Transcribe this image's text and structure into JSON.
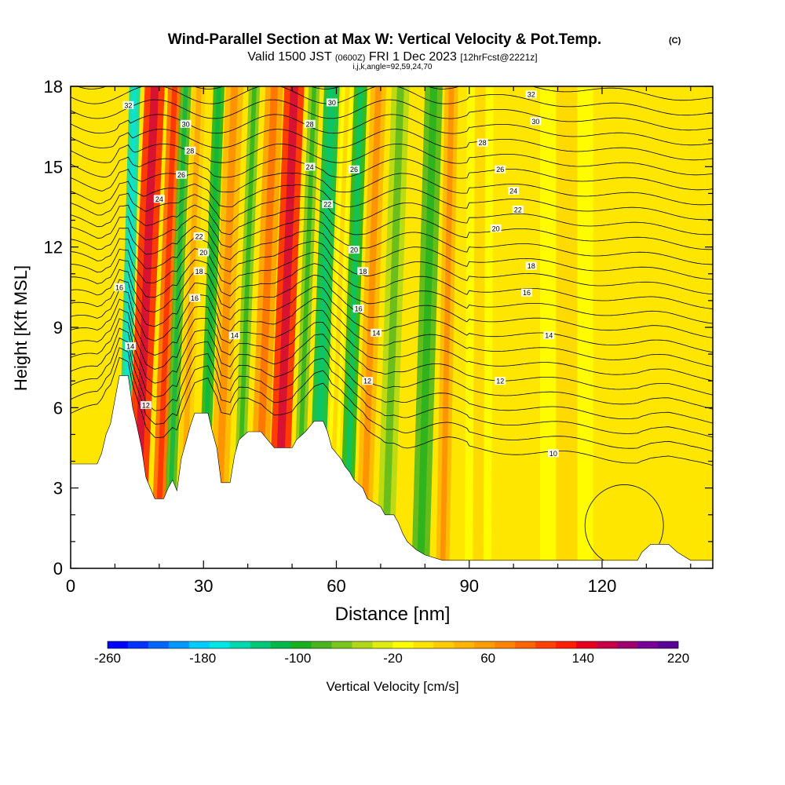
{
  "chart_data": {
    "type": "heatmap",
    "title": "Wind-Parallel Section at Max W: Vertical Velocity & Pot.Temp.",
    "title_mark": "(C)",
    "subtitle": {
      "valid_prefix": "Valid 1500 JST",
      "utc": "(0600Z)",
      "date": "FRI 1 Dec 2023",
      "forecast": "[12hrFcst@2221z]"
    },
    "index_line": "i,j,k,angle=92,59,24,70",
    "xlabel": "Distance [nm]",
    "ylabel": "Height [Kft MSL]",
    "xlim": [
      0,
      145
    ],
    "ylim": [
      0,
      18
    ],
    "x_ticks": [
      "0",
      "30",
      "60",
      "90",
      "120"
    ],
    "x_tick_values": [
      0,
      30,
      60,
      90,
      120
    ],
    "y_ticks": [
      "0",
      "3",
      "6",
      "9",
      "12",
      "15",
      "18"
    ],
    "y_tick_values": [
      0,
      3,
      6,
      9,
      12,
      15,
      18
    ],
    "colorbar": {
      "label": "Vertical Velocity [cm/s]",
      "range": [
        -260,
        220
      ],
      "step": 20,
      "tick_labels": [
        "-260",
        "-180",
        "-100",
        "-20",
        "60",
        "140",
        "220"
      ],
      "tick_values": [
        -260,
        -180,
        -100,
        -20,
        60,
        140,
        220
      ],
      "colors": [
        "#0000ff",
        "#0033ff",
        "#0066ff",
        "#0099ff",
        "#00ccff",
        "#00e5e5",
        "#00d9b0",
        "#00c878",
        "#00b84a",
        "#19b01e",
        "#4ab420",
        "#7cc41e",
        "#b0d816",
        "#e0ec10",
        "#ffff00",
        "#ffe400",
        "#ffcc00",
        "#ffb400",
        "#ff9c00",
        "#ff8200",
        "#ff6400",
        "#ff4000",
        "#ff1e00",
        "#e6001e",
        "#c80046",
        "#a0006e",
        "#780096",
        "#5a0096"
      ]
    },
    "theta_contours": {
      "unit_note": "potential temperature isentropes",
      "labels": [
        {
          "text": "32",
          "x": 13,
          "y": 17.3
        },
        {
          "text": "30",
          "x": 26,
          "y": 16.6
        },
        {
          "text": "28",
          "x": 27,
          "y": 15.6
        },
        {
          "text": "26",
          "x": 25,
          "y": 14.7
        },
        {
          "text": "24",
          "x": 20,
          "y": 13.8
        },
        {
          "text": "22",
          "x": 29,
          "y": 12.4
        },
        {
          "text": "20",
          "x": 30,
          "y": 11.8
        },
        {
          "text": "18",
          "x": 29,
          "y": 11.1
        },
        {
          "text": "16",
          "x": 11,
          "y": 10.5
        },
        {
          "text": "16",
          "x": 28,
          "y": 10.1
        },
        {
          "text": "14",
          "x": 37,
          "y": 8.7
        },
        {
          "text": "14",
          "x": 13.5,
          "y": 8.3
        },
        {
          "text": "12",
          "x": 17,
          "y": 6.1
        },
        {
          "text": "30",
          "x": 59,
          "y": 17.4
        },
        {
          "text": "28",
          "x": 54,
          "y": 16.6
        },
        {
          "text": "26",
          "x": 64,
          "y": 14.9
        },
        {
          "text": "24",
          "x": 54,
          "y": 15.0
        },
        {
          "text": "22",
          "x": 58,
          "y": 13.6
        },
        {
          "text": "20",
          "x": 64,
          "y": 11.9
        },
        {
          "text": "18",
          "x": 66,
          "y": 11.1
        },
        {
          "text": "16",
          "x": 65,
          "y": 9.7
        },
        {
          "text": "14",
          "x": 69,
          "y": 8.8
        },
        {
          "text": "12",
          "x": 67,
          "y": 7.0
        },
        {
          "text": "32",
          "x": 104,
          "y": 17.7
        },
        {
          "text": "30",
          "x": 105,
          "y": 16.7
        },
        {
          "text": "28",
          "x": 93,
          "y": 15.9
        },
        {
          "text": "26",
          "x": 97,
          "y": 14.9
        },
        {
          "text": "24",
          "x": 100,
          "y": 14.1
        },
        {
          "text": "22",
          "x": 101,
          "y": 13.4
        },
        {
          "text": "20",
          "x": 96,
          "y": 12.7
        },
        {
          "text": "18",
          "x": 104,
          "y": 11.3
        },
        {
          "text": "16",
          "x": 103,
          "y": 10.3
        },
        {
          "text": "14",
          "x": 108,
          "y": 8.7
        },
        {
          "text": "12",
          "x": 97,
          "y": 7.0
        },
        {
          "text": "10",
          "x": 109,
          "y": 4.3
        }
      ]
    },
    "terrain_profile": [
      [
        0,
        3.9
      ],
      [
        6,
        3.9
      ],
      [
        7,
        4.3
      ],
      [
        8,
        5.0
      ],
      [
        9,
        5.4
      ],
      [
        10,
        6.3
      ],
      [
        11,
        7.2
      ],
      [
        13,
        7.2
      ],
      [
        14,
        6.0
      ],
      [
        15,
        5.3
      ],
      [
        16,
        4.5
      ],
      [
        17,
        3.4
      ],
      [
        18,
        3.0
      ],
      [
        19,
        2.6
      ],
      [
        21,
        2.6
      ],
      [
        22,
        3.0
      ],
      [
        23,
        3.3
      ],
      [
        24,
        2.9
      ],
      [
        25,
        4.1
      ],
      [
        26,
        4.7
      ],
      [
        27,
        5.3
      ],
      [
        28,
        5.8
      ],
      [
        31,
        5.8
      ],
      [
        32,
        5.1
      ],
      [
        33,
        4.5
      ],
      [
        34,
        3.2
      ],
      [
        36,
        3.2
      ],
      [
        37,
        4.2
      ],
      [
        38,
        4.8
      ],
      [
        40,
        5.1
      ],
      [
        43,
        5.1
      ],
      [
        44,
        4.9
      ],
      [
        46,
        4.5
      ],
      [
        50,
        4.5
      ],
      [
        51,
        4.8
      ],
      [
        53,
        5.1
      ],
      [
        55,
        5.5
      ],
      [
        57,
        5.5
      ],
      [
        58,
        5.1
      ],
      [
        59,
        4.5
      ],
      [
        61,
        4.1
      ],
      [
        62,
        3.8
      ],
      [
        63,
        3.6
      ],
      [
        64,
        3.3
      ],
      [
        66,
        3.0
      ],
      [
        67,
        2.6
      ],
      [
        70,
        2.3
      ],
      [
        71,
        2.0
      ],
      [
        73,
        2.0
      ],
      [
        74,
        1.7
      ],
      [
        75,
        1.3
      ],
      [
        76,
        1.0
      ],
      [
        78,
        0.7
      ],
      [
        80,
        0.5
      ],
      [
        84,
        0.3
      ],
      [
        128,
        0.3
      ],
      [
        129,
        0.6
      ],
      [
        131,
        0.9
      ],
      [
        135,
        0.9
      ],
      [
        137,
        0.6
      ],
      [
        140,
        0.3
      ],
      [
        145,
        0.3
      ]
    ],
    "velocity_bands": [
      {
        "x": 14.5,
        "w": 4.5,
        "tilt": 4.5,
        "value": 190
      },
      {
        "x": 19.5,
        "w": 3.0,
        "tilt": 4.0,
        "value": 140
      },
      {
        "x": 11.5,
        "w": 2.5,
        "tilt": 3.0,
        "value": -130
      },
      {
        "x": 22.0,
        "w": 2.5,
        "tilt": 4.0,
        "value": -60
      },
      {
        "x": 25.0,
        "w": 3.0,
        "tilt": 4.0,
        "value": 60
      },
      {
        "x": 29.5,
        "w": 2.5,
        "tilt": 4.0,
        "value": -70
      },
      {
        "x": 33.0,
        "w": 4.0,
        "tilt": 4.0,
        "value": 90
      },
      {
        "x": 37.5,
        "w": 2.5,
        "tilt": 4.0,
        "value": -40
      },
      {
        "x": 42.0,
        "w": 4.0,
        "tilt": 4.0,
        "value": 110
      },
      {
        "x": 46.5,
        "w": 4.5,
        "tilt": 4.0,
        "value": 180
      },
      {
        "x": 51.0,
        "w": 2.5,
        "tilt": 4.0,
        "value": -40
      },
      {
        "x": 55.0,
        "w": 3.5,
        "tilt": 4.0,
        "value": -90
      },
      {
        "x": 58.5,
        "w": 2.5,
        "tilt": 4.0,
        "value": 30
      },
      {
        "x": 62.0,
        "w": 3.0,
        "tilt": 3.5,
        "value": -80
      },
      {
        "x": 66.0,
        "w": 3.5,
        "tilt": 3.5,
        "value": 80
      },
      {
        "x": 71.0,
        "w": 4.0,
        "tilt": 3.5,
        "value": -20
      },
      {
        "x": 79.0,
        "w": 4.0,
        "tilt": 3.0,
        "value": -50
      },
      {
        "x": 84.0,
        "w": 3.0,
        "tilt": 2.0,
        "value": 90
      },
      {
        "x": 92.0,
        "w": 6.0,
        "tilt": 0.5,
        "value": 30
      },
      {
        "x": 112.0,
        "w": 12.0,
        "tilt": 0.0,
        "value": 20
      }
    ]
  }
}
